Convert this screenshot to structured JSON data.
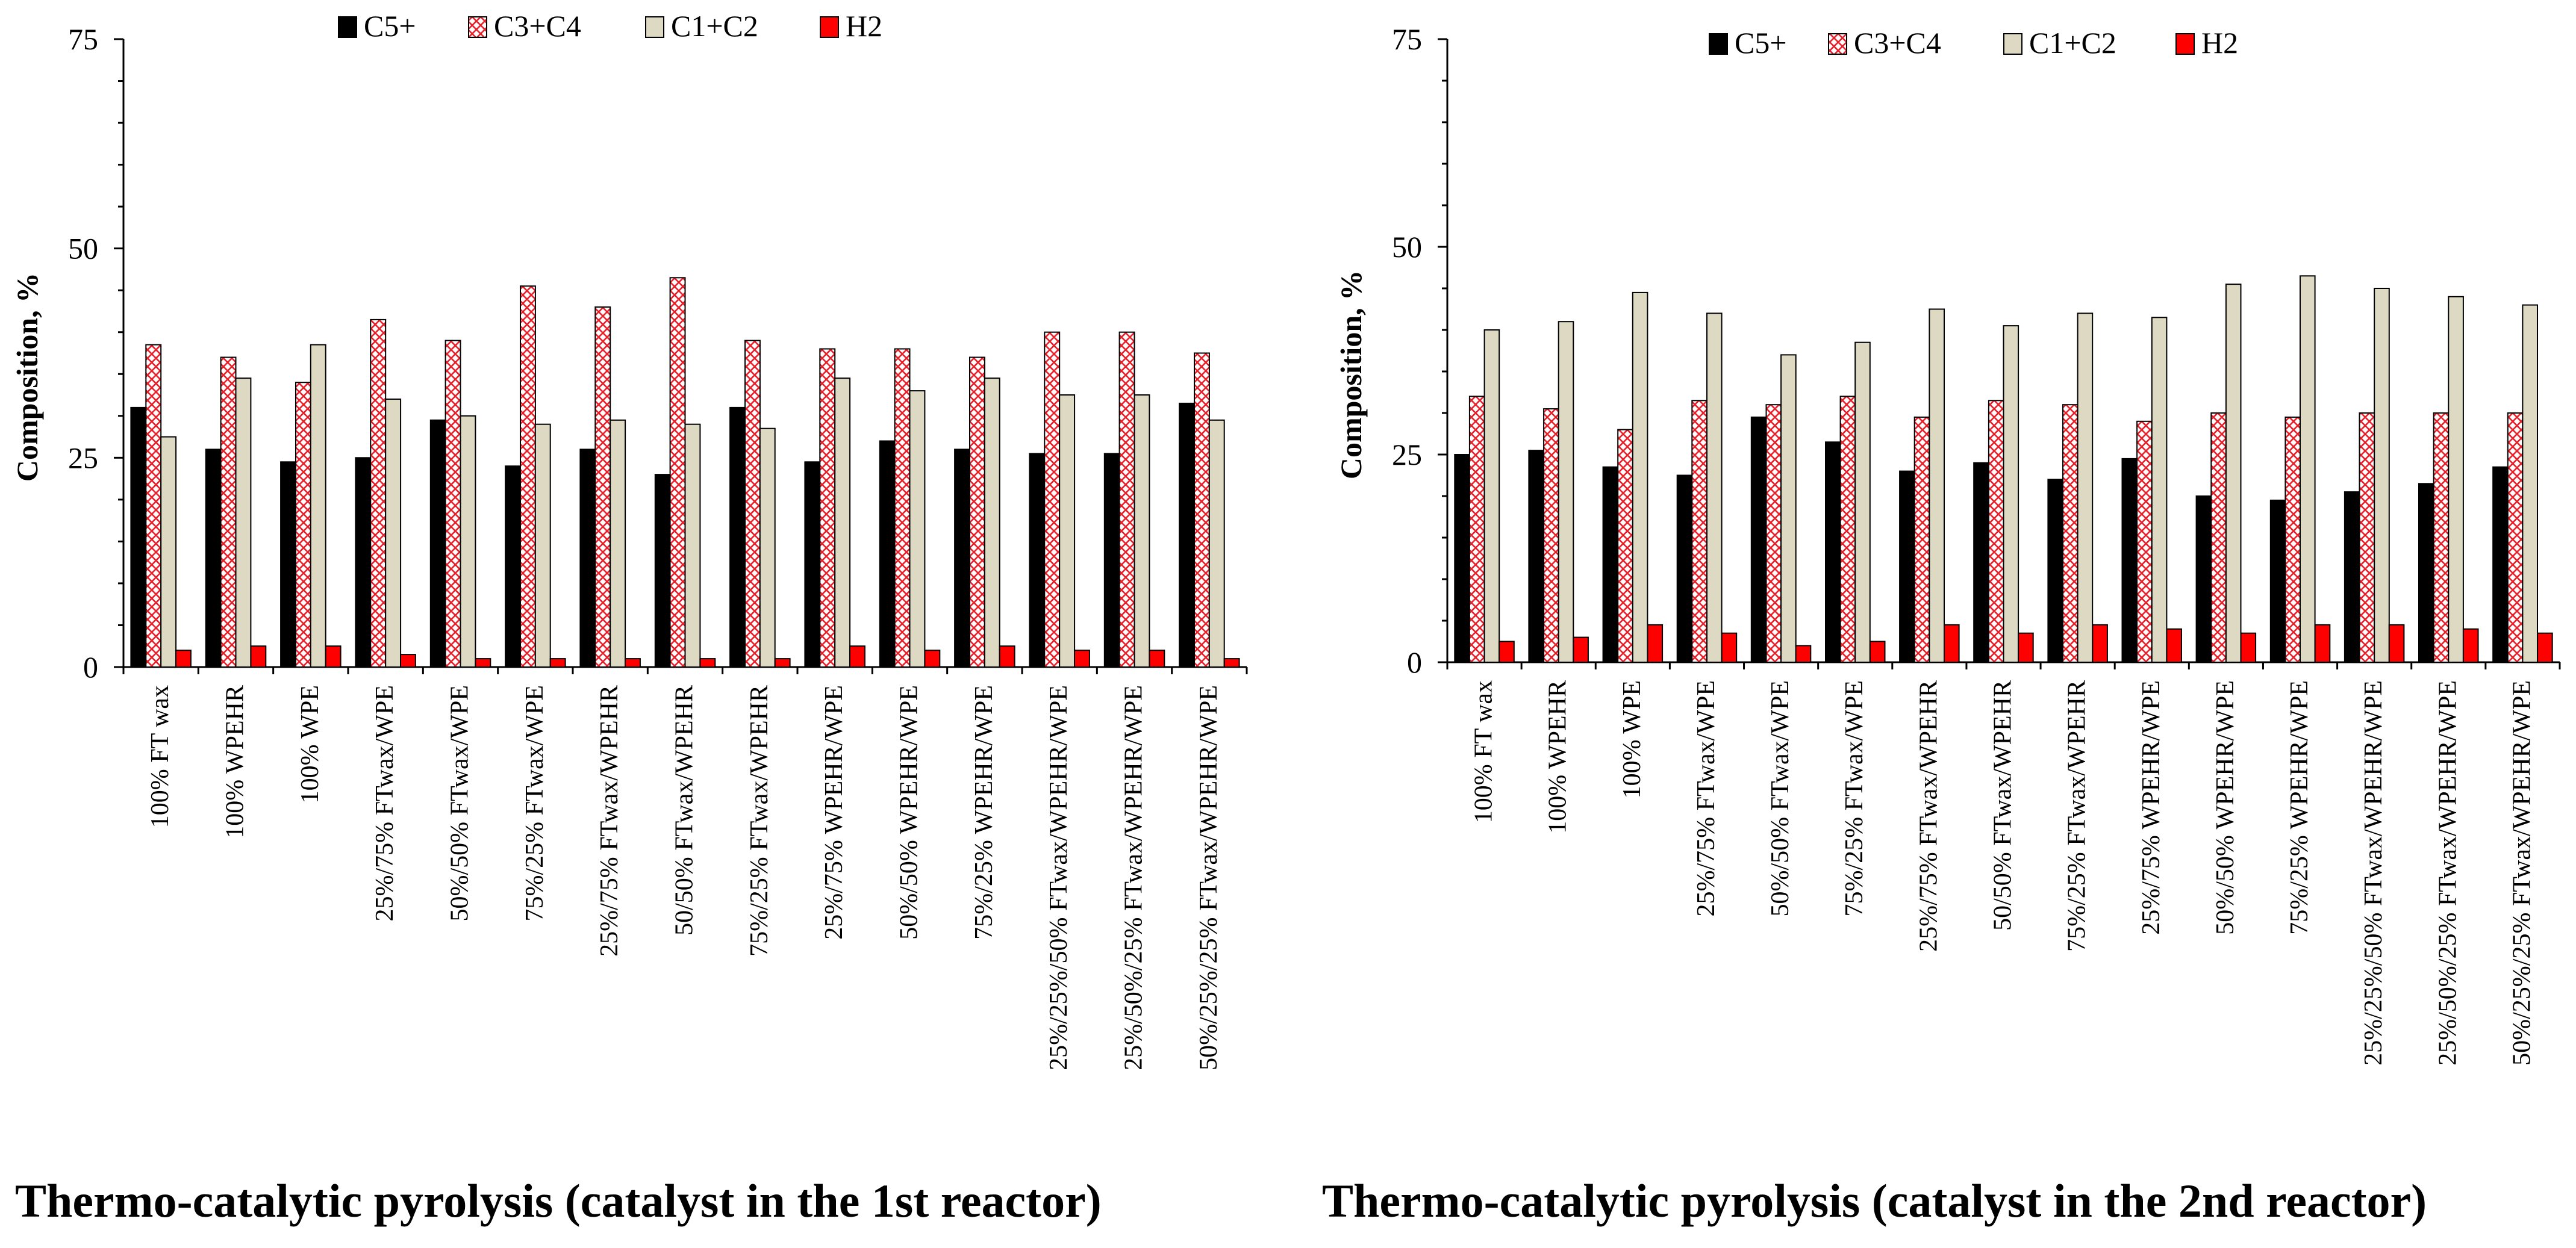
{
  "chart_data": [
    {
      "type": "bar",
      "title": "Thermo-catalytic pyrolysis (catalyst in the 1st reactor)",
      "xlabel": "",
      "ylabel": "Composition, %",
      "ylim": [
        0,
        75
      ],
      "yticks": [
        "0",
        "25",
        "50",
        "75"
      ],
      "legend_position": "top-center",
      "categories": [
        "100% FT wax",
        "100% WPEHR",
        "100% WPE",
        "25%/75% FTwax/WPE",
        "50%/50% FTwax/WPE",
        "75%/25% FTwax/WPE",
        "25%/75% FTwax/WPEHR",
        "50/50% FTwax/WPEHR",
        "75%/25% FTwax/WPEHR",
        "25%/75% WPEHR/WPE",
        "50%/50% WPEHR/WPE",
        "75%/25% WPEHR/WPE",
        "25%/25%/50% FTwax/WPEHR/WPE",
        "25%/50%/25% FTwax/WPEHR/WPE",
        "50%/25%/25% FTwax/WPEHR/WPE"
      ],
      "series": [
        {
          "name": "C5+",
          "color": "#000000",
          "pattern": "solid",
          "values": [
            31,
            26,
            24.5,
            25,
            29.5,
            24,
            26,
            23,
            31,
            24.5,
            27,
            26,
            25.5,
            25.5,
            31.5
          ]
        },
        {
          "name": "C3+C4",
          "color": "#e8202a",
          "pattern": "crosshatch",
          "values": [
            38.5,
            37,
            34,
            41.5,
            39,
            45.5,
            43,
            46.5,
            39,
            38,
            38,
            37,
            40,
            40,
            37.5
          ]
        },
        {
          "name": "C1+C2",
          "color": "#ddd9c3",
          "pattern": "solid",
          "values": [
            27.5,
            34.5,
            38.5,
            32,
            30,
            29,
            29.5,
            29,
            28.5,
            34.5,
            33,
            34.5,
            32.5,
            32.5,
            29.5
          ]
        },
        {
          "name": "H2",
          "color": "#ff0000",
          "pattern": "solid",
          "values": [
            2,
            2.5,
            2.5,
            1.5,
            1,
            1,
            1,
            1,
            1,
            2.5,
            2,
            2.5,
            2,
            2,
            1
          ]
        }
      ]
    },
    {
      "type": "bar",
      "title": "Thermo-catalytic pyrolysis (catalyst in the 2nd reactor)",
      "xlabel": "",
      "ylabel": "Composition, %",
      "ylim": [
        0,
        75
      ],
      "yticks": [
        "0",
        "25",
        "50",
        "75"
      ],
      "legend_position": "top-center",
      "categories": [
        "100% FT wax",
        "100% WPEHR",
        "100% WPE",
        "25%/75% FTwax/WPE",
        "50%/50% FTwax/WPE",
        "75%/25% FTwax/WPE",
        "25%/75% FTwax/WPEHR",
        "50/50% FTwax/WPEHR",
        "75%/25% FTwax/WPEHR",
        "25%/75% WPEHR/WPE",
        "50%/50% WPEHR/WPE",
        "75%/25% WPEHR/WPE",
        "25%/25%/50% FTwax/WPEHR/WPE",
        "25%/50%/25% FTwax/WPEHR/WPE",
        "50%/25%/25% FTwax/WPEHR/WPE"
      ],
      "series": [
        {
          "name": "C5+",
          "color": "#000000",
          "pattern": "solid",
          "values": [
            25,
            25.5,
            23.5,
            22.5,
            29.5,
            26.5,
            23,
            24,
            22,
            24.5,
            20,
            19.5,
            20.5,
            21.5,
            23.5
          ]
        },
        {
          "name": "C3+C4",
          "color": "#e8202a",
          "pattern": "crosshatch",
          "values": [
            32,
            30.5,
            28,
            31.5,
            31,
            32,
            29.5,
            31.5,
            31,
            29,
            30,
            29.5,
            30,
            30,
            30
          ]
        },
        {
          "name": "C1+C2",
          "color": "#ddd9c3",
          "pattern": "solid",
          "values": [
            40,
            41,
            44.5,
            42,
            37,
            38.5,
            42.5,
            40.5,
            42,
            41.5,
            45.5,
            46.5,
            45,
            44,
            43
          ]
        },
        {
          "name": "H2",
          "color": "#ff0000",
          "pattern": "solid",
          "values": [
            2.5,
            3,
            4.5,
            3.5,
            2,
            2.5,
            4.5,
            3.5,
            4.5,
            4,
            3.5,
            4.5,
            4.5,
            4,
            3.5
          ]
        }
      ]
    }
  ]
}
